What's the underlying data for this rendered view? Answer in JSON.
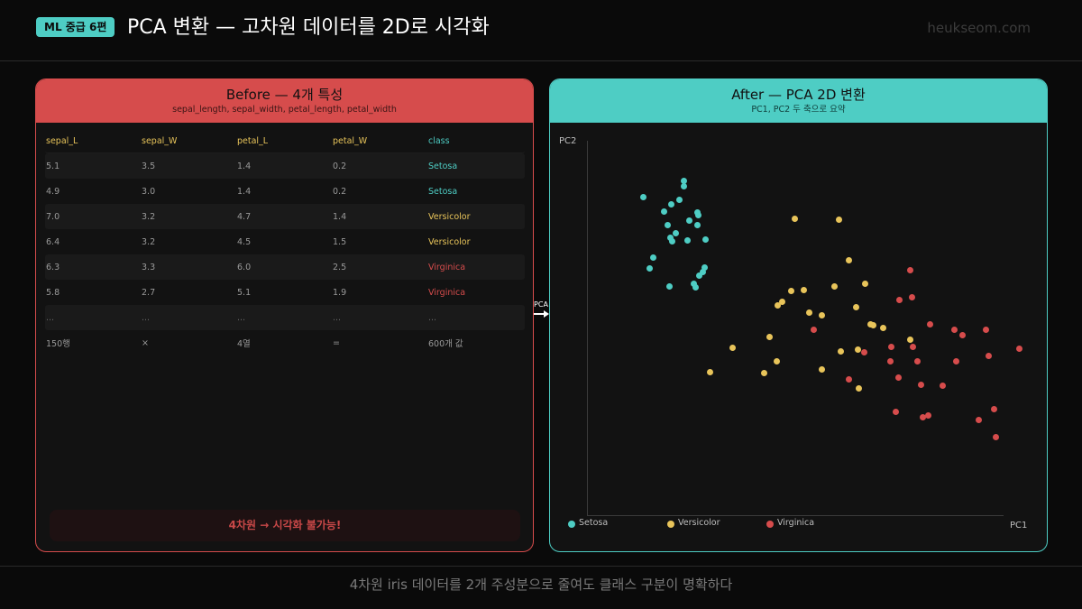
{
  "header": {
    "badge": "ML 중급 6편",
    "title": "PCA 변환 — 고차원 데이터를 2D로 시각화",
    "brand": "heukseom.com"
  },
  "before_panel": {
    "title": "Before — 4개 특성",
    "subtitle": "sepal_length, sepal_width, petal_length, petal_width",
    "columns": [
      "sepal_L",
      "sepal_W",
      "petal_L",
      "petal_W",
      "class"
    ],
    "rows": [
      [
        "5.1",
        "3.5",
        "1.4",
        "0.2",
        "Setosa"
      ],
      [
        "4.9",
        "3.0",
        "1.4",
        "0.2",
        "Setosa"
      ],
      [
        "7.0",
        "3.2",
        "4.7",
        "1.4",
        "Versicolor"
      ],
      [
        "6.4",
        "3.2",
        "4.5",
        "1.5",
        "Versicolor"
      ],
      [
        "6.3",
        "3.3",
        "6.0",
        "2.5",
        "Virginica"
      ],
      [
        "5.8",
        "2.7",
        "5.1",
        "1.9",
        "Virginica"
      ],
      [
        "...",
        "...",
        "...",
        "...",
        "..."
      ]
    ],
    "summary": [
      "150행",
      "×",
      "4열",
      "=",
      "600개 값"
    ],
    "warning": "4차원 → 시각화 불가능!"
  },
  "arrow": {
    "label": "PCA"
  },
  "after_panel": {
    "title": "After — PCA 2D 변환",
    "subtitle": "PC1, PC2 두 축으로 요약"
  },
  "colors": {
    "setosa": "#4ecdc4",
    "versicolor": "#e8c45a",
    "virginica": "#d64c4c",
    "before_accent": "#d64c4c",
    "after_accent": "#4ecdc4"
  },
  "chart_data": {
    "type": "scatter",
    "title": "After — PCA 2D 변환",
    "xlabel": "PC1",
    "ylabel": "PC2",
    "grid": false,
    "legend_position": "bottom-left",
    "legend": [
      "Setosa",
      "Versicolor",
      "Virginica"
    ],
    "coordinate_note": "points given in plot-area pixels (x right from PC2 axis, y down from panel body top)",
    "series": [
      {
        "name": "Setosa",
        "color": "#4ecdc4",
        "points": [
          [
            62,
            82
          ],
          [
            107,
            64
          ],
          [
            107,
            70
          ],
          [
            102,
            85
          ],
          [
            93,
            90
          ],
          [
            85,
            98
          ],
          [
            113,
            108
          ],
          [
            122,
            99
          ],
          [
            123,
            102
          ],
          [
            122,
            113
          ],
          [
            89,
            113
          ],
          [
            131,
            129
          ],
          [
            98,
            122
          ],
          [
            92,
            127
          ],
          [
            94,
            131
          ],
          [
            111,
            130
          ],
          [
            73,
            149
          ],
          [
            69,
            161
          ],
          [
            91,
            181
          ],
          [
            118,
            178
          ],
          [
            120,
            182
          ],
          [
            124,
            169
          ],
          [
            128,
            165
          ],
          [
            130,
            160
          ]
        ]
      },
      {
        "name": "Versicolor",
        "color": "#e8c45a",
        "points": [
          [
            230,
            106
          ],
          [
            279,
            107
          ],
          [
            290,
            152
          ],
          [
            308,
            178
          ],
          [
            274,
            181
          ],
          [
            226,
            186
          ],
          [
            240,
            185
          ],
          [
            216,
            198
          ],
          [
            211,
            202
          ],
          [
            246,
            210
          ],
          [
            260,
            213
          ],
          [
            298,
            204
          ],
          [
            314,
            223
          ],
          [
            317,
            224
          ],
          [
            328,
            227
          ],
          [
            358,
            240
          ],
          [
            202,
            237
          ],
          [
            161,
            249
          ],
          [
            281,
            253
          ],
          [
            300,
            251
          ],
          [
            210,
            264
          ],
          [
            260,
            273
          ],
          [
            136,
            276
          ],
          [
            196,
            277
          ],
          [
            301,
            294
          ]
        ]
      },
      {
        "name": "Virginica",
        "color": "#d64c4c",
        "points": [
          [
            358,
            163
          ],
          [
            346,
            196
          ],
          [
            360,
            193
          ],
          [
            251,
            229
          ],
          [
            380,
            223
          ],
          [
            407,
            229
          ],
          [
            416,
            235
          ],
          [
            442,
            229
          ],
          [
            479,
            250
          ],
          [
            337,
            248
          ],
          [
            361,
            248
          ],
          [
            366,
            264
          ],
          [
            307,
            254
          ],
          [
            336,
            264
          ],
          [
            445,
            258
          ],
          [
            409,
            264
          ],
          [
            290,
            284
          ],
          [
            345,
            282
          ],
          [
            370,
            290
          ],
          [
            394,
            291
          ],
          [
            342,
            320
          ],
          [
            372,
            326
          ],
          [
            378,
            324
          ],
          [
            451,
            317
          ],
          [
            434,
            329
          ],
          [
            453,
            348
          ]
        ]
      }
    ]
  },
  "legend": {
    "items": [
      {
        "label": "Setosa",
        "color": "#4ecdc4"
      },
      {
        "label": "Versicolor",
        "color": "#e8c45a"
      },
      {
        "label": "Virginica",
        "color": "#d64c4c"
      }
    ],
    "x_axis": "PC1",
    "y_axis": "PC2"
  },
  "footer": {
    "caption": "4차원 iris 데이터를 2개 주성분으로 줄여도 클래스 구분이 명확하다"
  }
}
